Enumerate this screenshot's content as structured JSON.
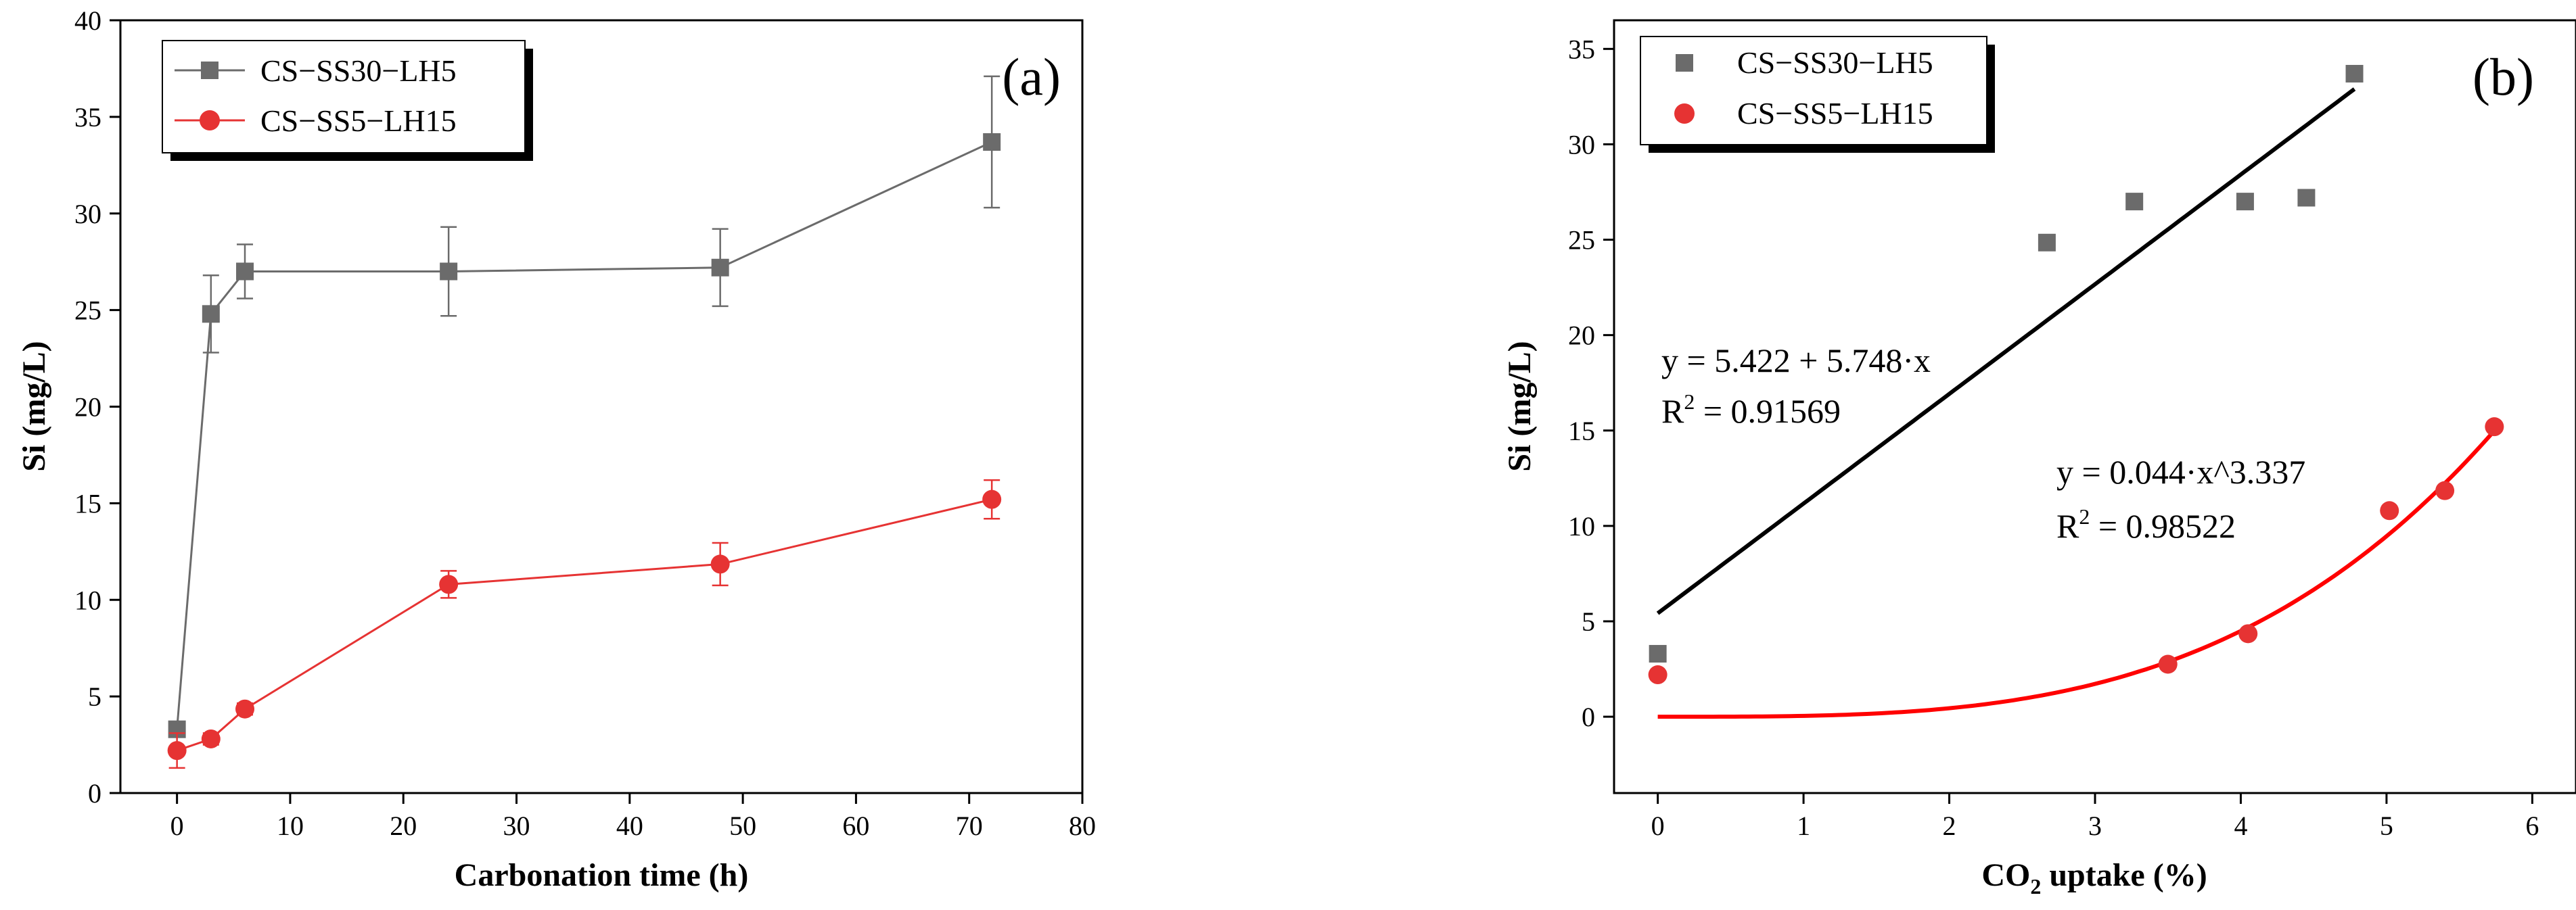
{
  "chart_data": [
    {
      "type": "line",
      "panel_label": "(a)",
      "xlabel": "Carbonation time (h)",
      "ylabel": "Si (mg/L)",
      "xlim": [
        -5,
        80
      ],
      "ylim": [
        0,
        40
      ],
      "xticks": [
        0,
        10,
        20,
        30,
        40,
        50,
        60,
        70,
        80
      ],
      "yticks": [
        0,
        5,
        10,
        15,
        20,
        25,
        30,
        35,
        40
      ],
      "legend_position": "top-left",
      "series": [
        {
          "name": "CS−SS30−LH5",
          "color": "#6b6b6b",
          "marker": "square",
          "x": [
            0,
            3,
            6,
            24,
            48,
            72
          ],
          "y": [
            3.3,
            24.8,
            27.0,
            27.0,
            27.2,
            33.7
          ],
          "error": [
            0.3,
            2.0,
            1.4,
            2.3,
            2.0,
            3.4
          ]
        },
        {
          "name": "CS−SS5−LH15",
          "color": "#e63333",
          "marker": "circle",
          "x": [
            0,
            3,
            6,
            24,
            48,
            72
          ],
          "y": [
            2.2,
            2.8,
            4.35,
            10.8,
            11.85,
            15.2
          ],
          "error": [
            0.9,
            0.3,
            0.3,
            0.7,
            1.1,
            1.0
          ]
        }
      ]
    },
    {
      "type": "scatter",
      "panel_label": "(b)",
      "xlabel_main": "CO",
      "xlabel_sub": "2",
      "xlabel_rest": " uptake (%)",
      "ylabel": "Si (mg/L)",
      "xlim": [
        -0.3,
        6.3
      ],
      "ylim": [
        -4,
        36.5
      ],
      "xticks": [
        0,
        1,
        2,
        3,
        4,
        5,
        6
      ],
      "yticks": [
        0,
        5,
        10,
        15,
        20,
        25,
        30,
        35
      ],
      "legend_position": "top-left",
      "series": [
        {
          "name": "CS−SS30−LH5",
          "color": "#6b6b6b",
          "marker": "square",
          "x": [
            0,
            2.67,
            3.27,
            4.03,
            4.45,
            4.78
          ],
          "y": [
            3.3,
            24.85,
            27.0,
            27.0,
            27.2,
            33.7
          ]
        },
        {
          "name": "CS−SS5−LH15",
          "color": "#e63333",
          "marker": "circle",
          "x": [
            0,
            3.5,
            4.05,
            5.02,
            5.4,
            5.74
          ],
          "y": [
            2.2,
            2.75,
            4.35,
            10.8,
            11.85,
            15.2
          ]
        }
      ],
      "fits": [
        {
          "series": "CS−SS30−LH5",
          "kind": "linear",
          "intercept": 5.422,
          "slope": 5.748,
          "x_range": [
            0,
            4.78
          ],
          "color": "#000000",
          "equation": "y = 5.422 + 5.748·x",
          "r2_label": "R",
          "r2_sup": "2",
          "r2_value": " = 0.91569"
        },
        {
          "series": "CS−SS5−LH15",
          "kind": "power",
          "coefficient": 0.044,
          "exponent": 3.337,
          "x_range": [
            0,
            5.74
          ],
          "color": "#ff0000",
          "equation": "y = 0.044·x^3.337",
          "r2_label": "R",
          "r2_sup": "2",
          "r2_value": " = 0.98522"
        }
      ]
    }
  ]
}
